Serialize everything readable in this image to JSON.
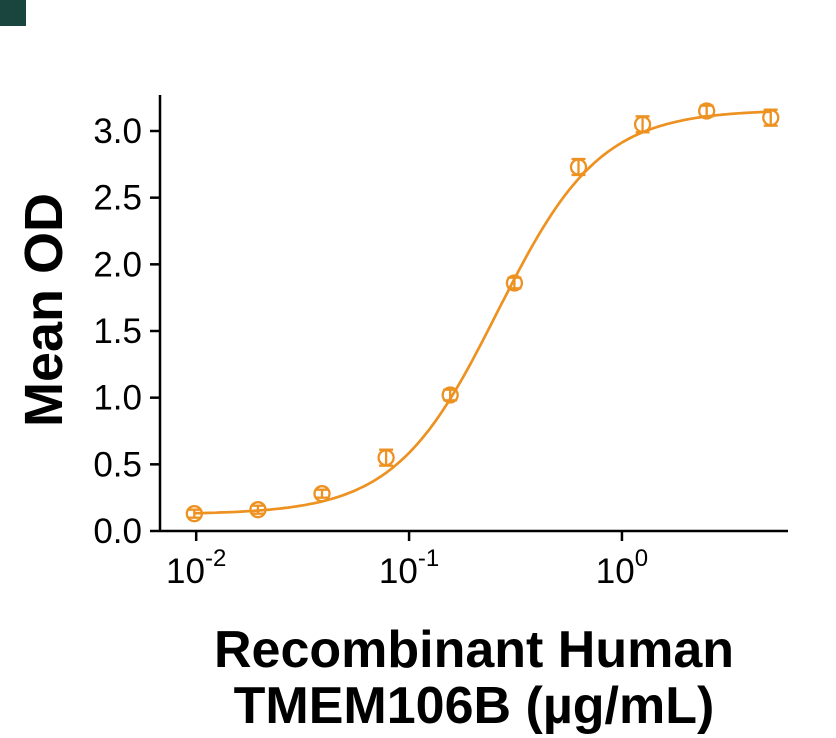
{
  "figure": {
    "background": "#FFFFFF",
    "corner_mark_color": "#1A443E"
  },
  "chart_data": {
    "type": "scatter",
    "title": "",
    "xlabel": "Recombinant Human TMEM106B (µg/mL)",
    "xlabel_lines": [
      "Recombinant Human",
      "TMEM106B (µg/mL)"
    ],
    "ylabel": "Mean OD",
    "x_scale": "log10",
    "grid": false,
    "legend": null,
    "color": "#ED9121",
    "axis_color": "#000000",
    "marker": "open-circle",
    "xlog_range": [
      -2.17,
      0.78
    ],
    "ylim": [
      0,
      3.27
    ],
    "x": [
      0.0098,
      0.0195,
      0.039,
      0.078,
      0.156,
      0.3125,
      0.625,
      1.25,
      2.5,
      5
    ],
    "y": [
      0.13,
      0.16,
      0.28,
      0.55,
      1.02,
      1.86,
      2.73,
      3.05,
      3.15,
      3.1
    ],
    "y_err": [
      0.03,
      0.03,
      0.03,
      0.06,
      0.04,
      0.04,
      0.06,
      0.06,
      0.04,
      0.06
    ],
    "fit": {
      "model": "4PL",
      "bottom": 0.125,
      "top": 3.16,
      "ec50": 0.26,
      "hill": 1.8
    },
    "x_ticks": [
      {
        "base": "10",
        "exp": "-2",
        "value": 0.01
      },
      {
        "base": "10",
        "exp": "-1",
        "value": 0.1
      },
      {
        "base": "10",
        "exp": "0",
        "value": 1
      }
    ],
    "y_ticks": [
      "0.0",
      "0.5",
      "1.0",
      "1.5",
      "2.0",
      "2.5",
      "3.0"
    ]
  }
}
